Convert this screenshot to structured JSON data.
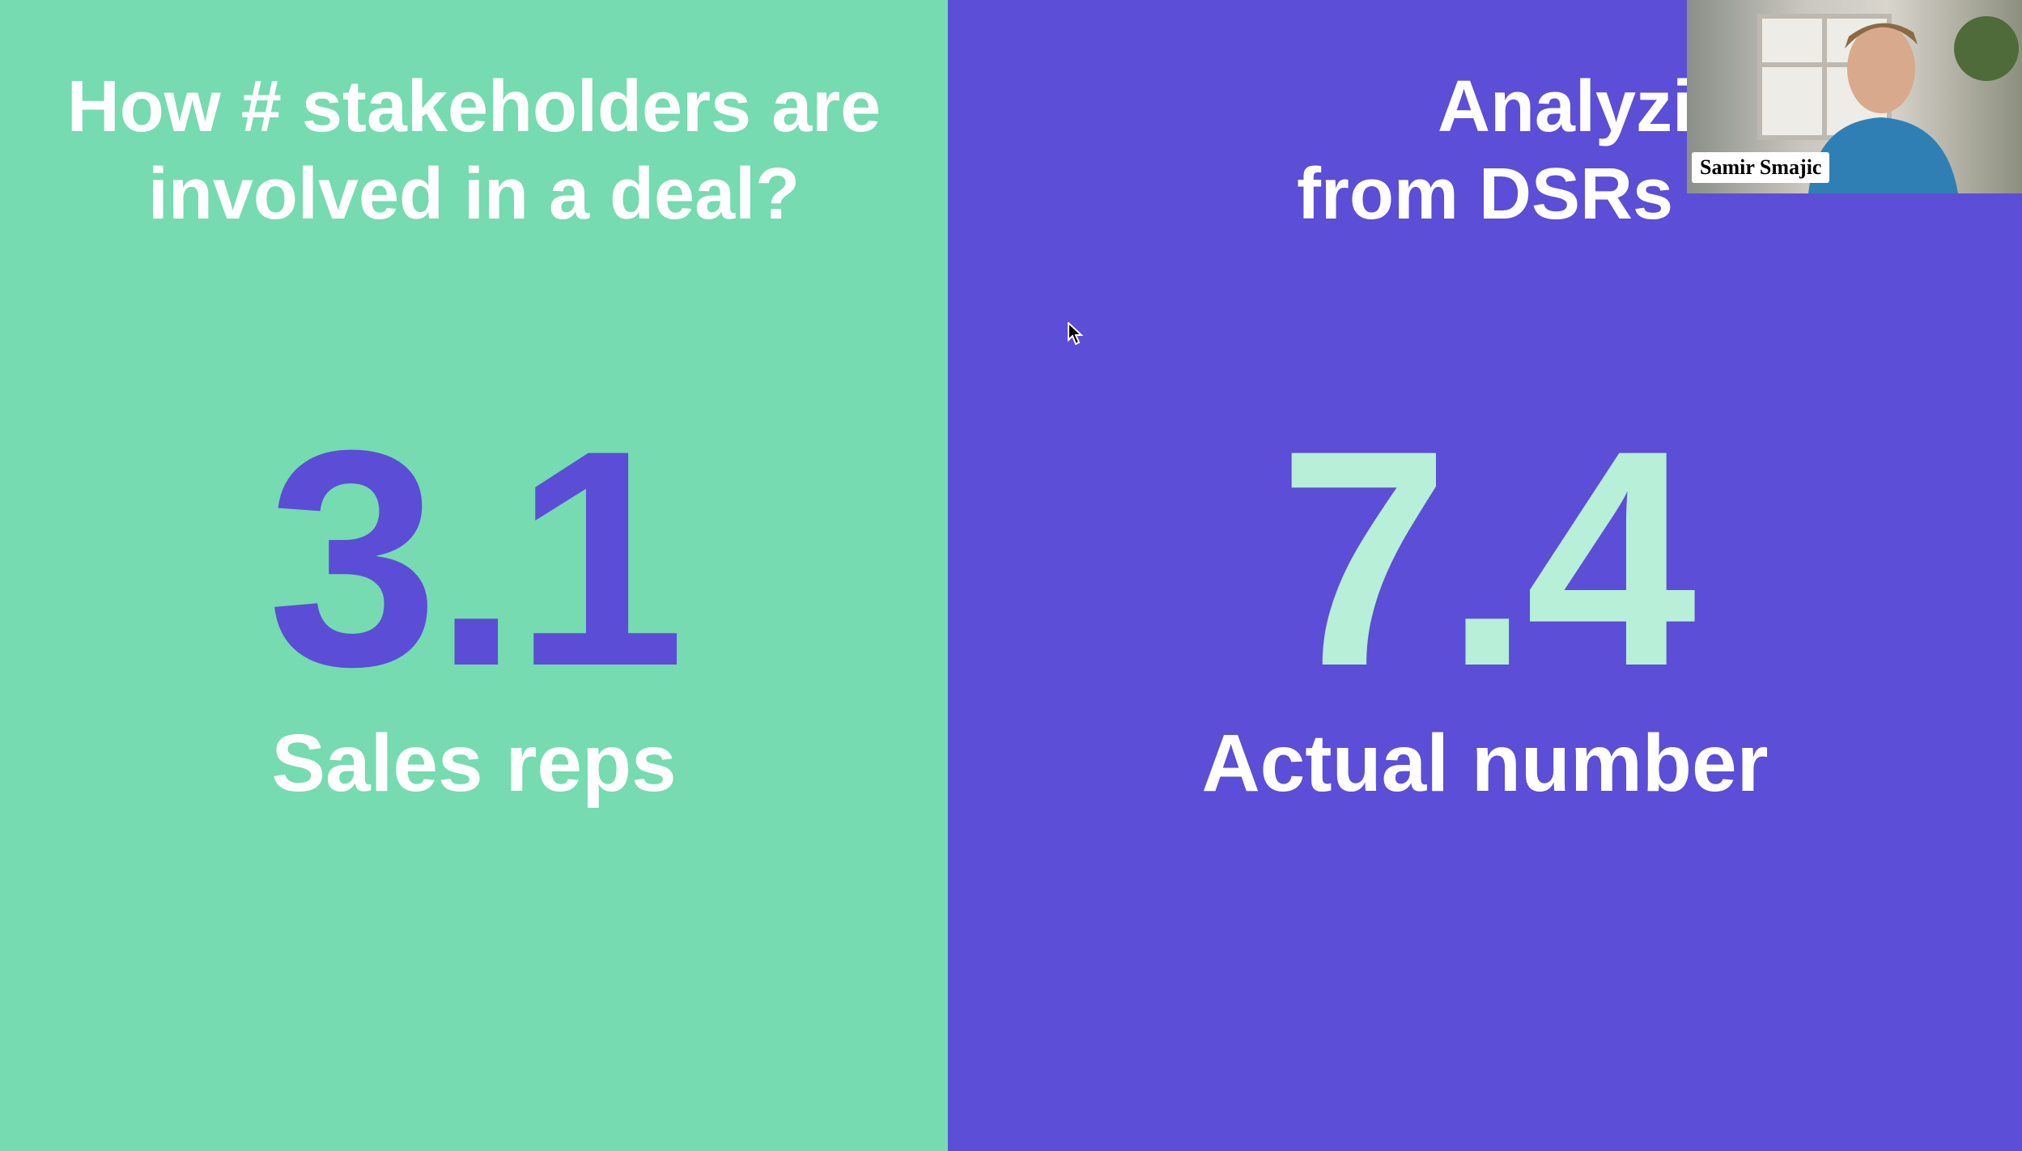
{
  "left": {
    "title_lines": [
      "How # stakeholders are",
      "involved in a deal?"
    ],
    "number": "3.1",
    "label": "Sales reps"
  },
  "right": {
    "title_lines": [
      "Analyzing the",
      "from DSRs"
    ],
    "number": "7.4",
    "label": "Actual number"
  },
  "video": {
    "name": "Samir Smajic"
  }
}
